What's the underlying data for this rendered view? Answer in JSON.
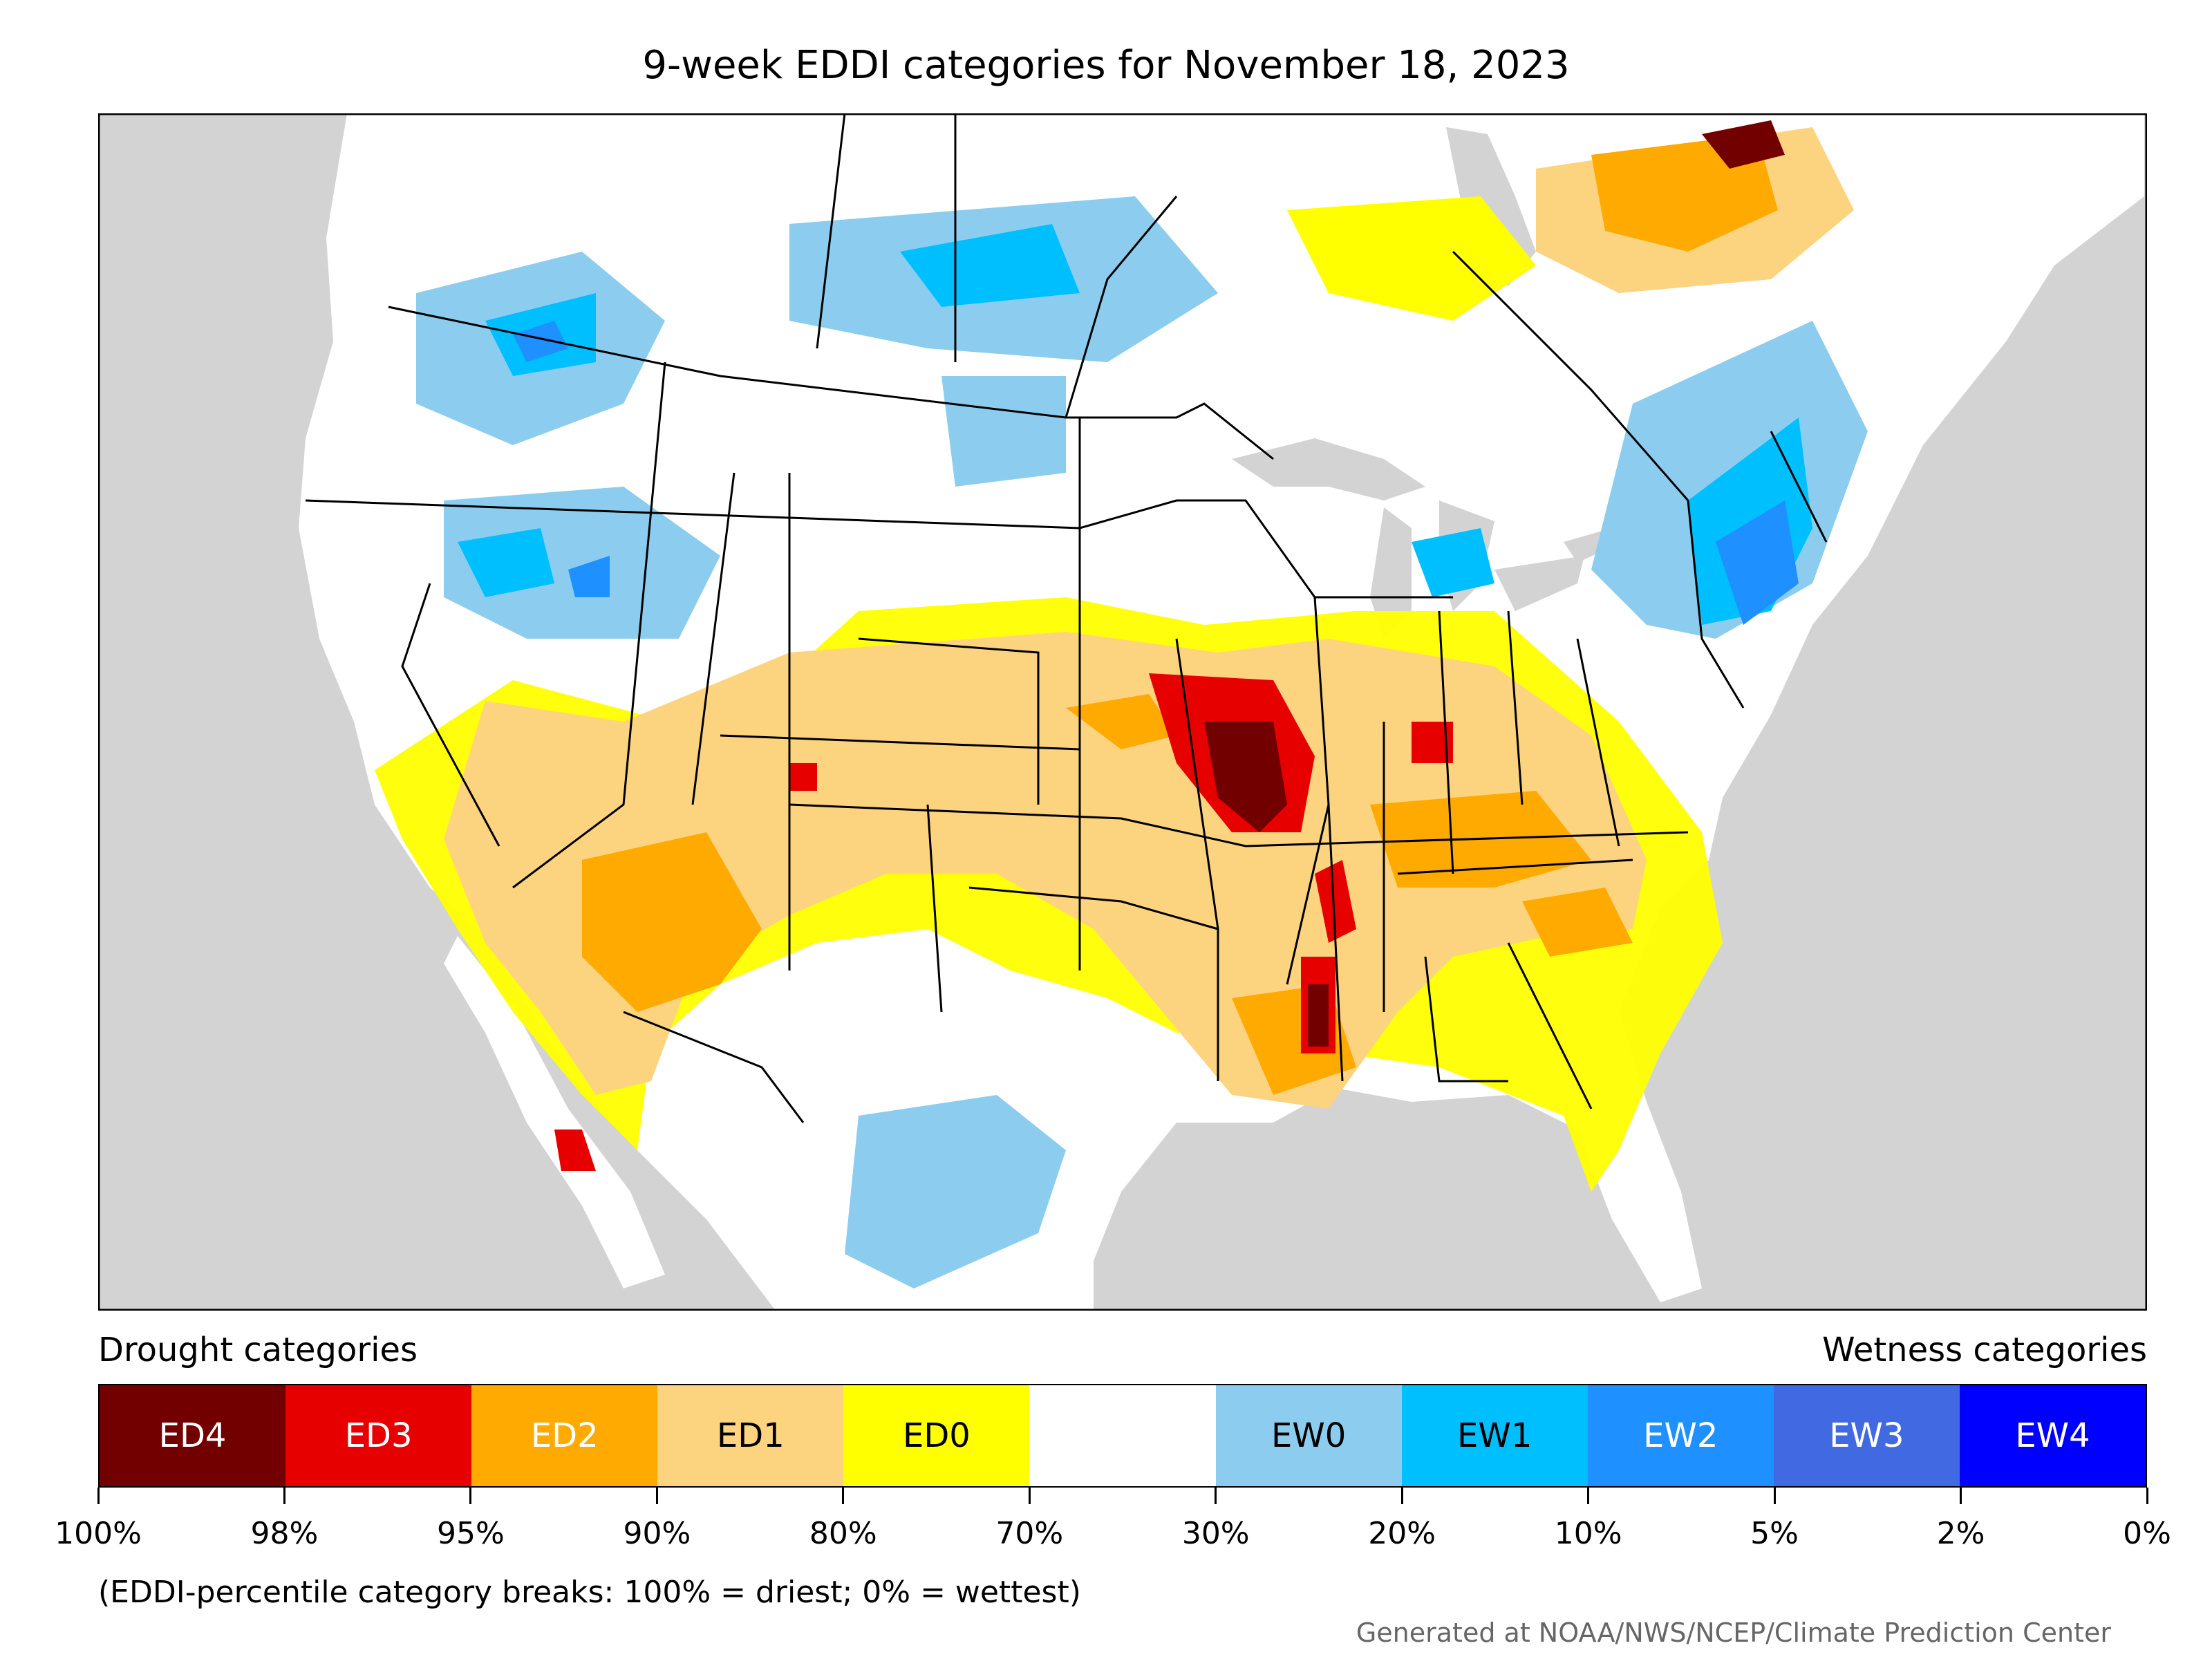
{
  "title": "9-week EDDI categories for November 18, 2023",
  "legend": {
    "drought_label": "Drought categories",
    "wetness_label": "Wetness categories",
    "categories": [
      {
        "label": "ED4",
        "color": "#730000",
        "text_color": "#ffffff"
      },
      {
        "label": "ED3",
        "color": "#e60000",
        "text_color": "#ffffff"
      },
      {
        "label": "ED2",
        "color": "#ffaa00",
        "text_color": "#ffffff"
      },
      {
        "label": "ED1",
        "color": "#fcd37f",
        "text_color": "#000000"
      },
      {
        "label": "ED0",
        "color": "#ffff00",
        "text_color": "#000000"
      },
      {
        "label": "",
        "color": "#ffffff",
        "text_color": "#000000"
      },
      {
        "label": "EW0",
        "color": "#8ccdef",
        "text_color": "#000000"
      },
      {
        "label": "EW1",
        "color": "#00bfff",
        "text_color": "#000000"
      },
      {
        "label": "EW2",
        "color": "#1e90ff",
        "text_color": "#ffffff"
      },
      {
        "label": "EW3",
        "color": "#4169e1",
        "text_color": "#ffffff"
      },
      {
        "label": "EW4",
        "color": "#0000ff",
        "text_color": "#ffffff"
      }
    ],
    "breaks": [
      "100%",
      "98%",
      "95%",
      "90%",
      "80%",
      "70%",
      "30%",
      "20%",
      "10%",
      "5%",
      "2%",
      "0%"
    ]
  },
  "note": "(EDDI-percentile category breaks: 100% = driest; 0% = wettest)",
  "credit": "Generated at NOAA/NWS/NCEP/Climate Prediction Center",
  "map_colors": {
    "background": "#d3d3d3",
    "land": "#ffffff",
    "border": "#000000"
  }
}
